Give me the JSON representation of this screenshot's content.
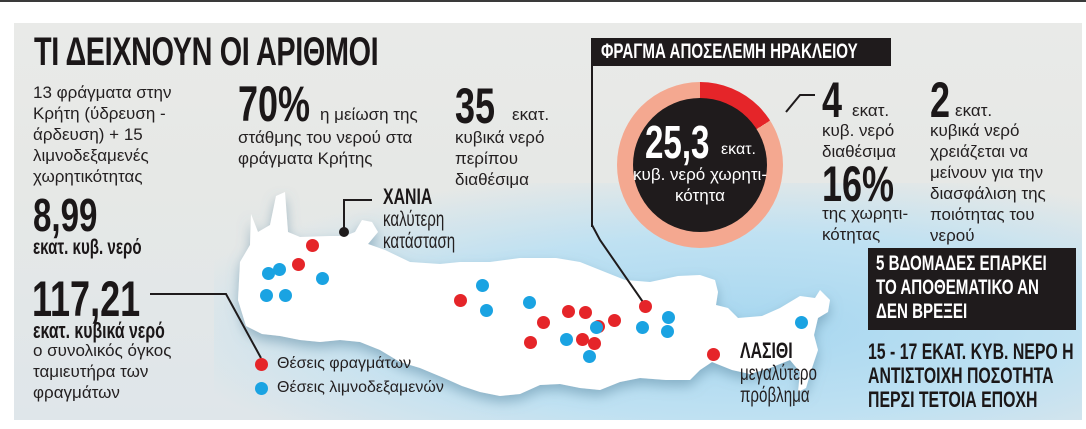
{
  "title": "ΤΙ ΔΕΙΧΝΟΥΝ ΟΙ ΑΡΙΘΜΟΙ",
  "left_column": {
    "intro": "13 φράγματα στην Κρήτη (ύδρευση - άρδευση) + 15 λιμνοδεξαμενές χωρητικότητας",
    "capacity_value": "8,99",
    "capacity_unit": "εκατ. κυβ. νερό",
    "total_value": "117,21",
    "total_unit": "εκατ. κυβικά νερό",
    "total_desc": "ο συνολικός όγκος ταμιευτήρα των φραγμάτων"
  },
  "stat_70": {
    "value": "70%",
    "text_inline": "η μείωση της",
    "text_rest": "στάθμης του νερού στα φράγματα Κρήτης"
  },
  "stat_35": {
    "value": "35",
    "text_inline": "εκατ.",
    "text_rest": "κυβικά νερό περίπου διαθέσιμα"
  },
  "dam_box": {
    "header": "ΦΡΑΓΜΑ ΑΠΟΣΕΛΕΜΗ ΗΡΑΚΛΕΙΟΥ",
    "capacity_value": "25,3",
    "capacity_unit": "εκατ.",
    "capacity_desc": "κυβ. νερό χωρητι- κότητα",
    "available_value": "4",
    "available_unit": "εκατ.",
    "available_desc": "κυβ. νερό διαθέσιμα",
    "percent_value": "16%",
    "percent_desc": "της χωρητι- κότητας",
    "required_value": "2",
    "required_unit": "εκατ.",
    "required_desc": "κυβικά νερό χρειάζεται να μείνουν για την διασφάλιση της ποιότητας του νερού"
  },
  "weeks_box": "5 ΒΔΟΜΑΔΕΣ ΕΠΑΡΚΕΙ ΤΟ ΑΠΟΘΕΜΑΤΙΚΟ ΑΝ ΔΕΝ ΒΡΕΞΕΙ",
  "bottom_note": "15 - 17 ΕΚΑΤ. ΚΥΒ. ΝΕΡΟ Η ΑΝΤΙΣΤΟΙΧΗ ΠΟΣΟΤΗΤΑ ΠΕΡΣΙ ΤΕΤΟΙΑ ΕΠΟΧΗ",
  "map": {
    "chania": {
      "name": "ΧΑΝΙΑ",
      "desc": "καλύτερη κατάσταση"
    },
    "lasithi": {
      "name": "ΛΑΣΙΘΙ",
      "desc": "μεγαλύτερο πρόβλημα"
    },
    "legend": [
      {
        "label": "Θέσεις φραγμάτων",
        "color": "#e52529"
      },
      {
        "label": "Θέσεις λιμνοδεξαμενών",
        "color": "#1aa3e2"
      }
    ],
    "dams": [
      [
        312,
        245
      ],
      [
        298,
        264
      ],
      [
        460,
        300
      ],
      [
        543,
        322
      ],
      [
        568,
        311
      ],
      [
        585,
        312
      ],
      [
        598,
        326
      ],
      [
        582,
        339
      ],
      [
        594,
        343
      ],
      [
        614,
        320
      ],
      [
        645,
        306
      ],
      [
        530,
        342
      ],
      [
        713,
        354
      ]
    ],
    "reservoirs": [
      [
        279,
        269
      ],
      [
        266,
        295
      ],
      [
        285,
        295
      ],
      [
        268,
        273
      ],
      [
        322,
        278
      ],
      [
        482,
        285
      ],
      [
        486,
        310
      ],
      [
        529,
        302
      ],
      [
        596,
        327
      ],
      [
        566,
        339
      ],
      [
        642,
        327
      ],
      [
        668,
        317
      ],
      [
        667,
        331
      ],
      [
        589,
        356
      ],
      [
        801,
        322
      ]
    ]
  },
  "colors": {
    "dam": "#e52529",
    "reservoir": "#1aa3e2",
    "donut_fill": "#f4a890",
    "donut_available": "#e52529",
    "dark": "#1f1b1c"
  }
}
